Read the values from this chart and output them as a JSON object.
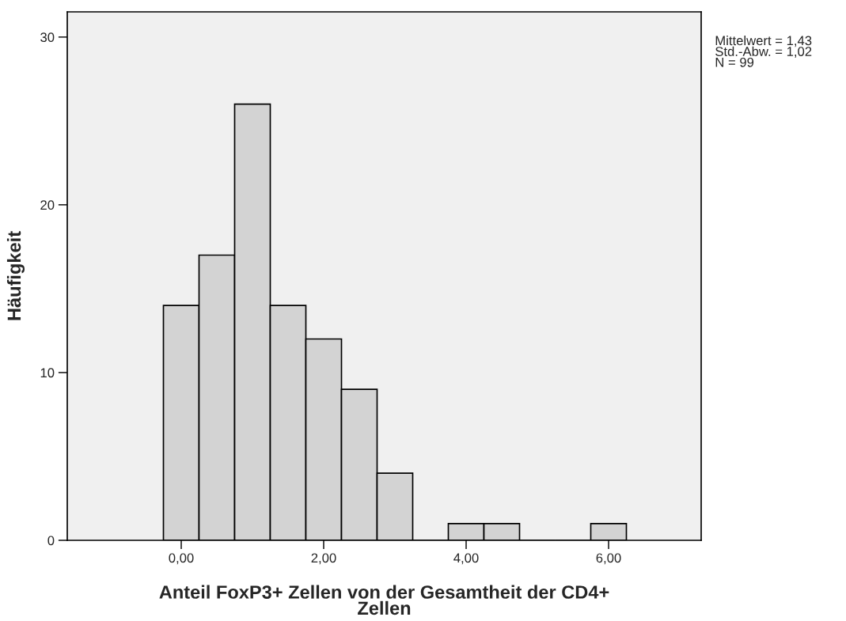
{
  "chart_data": {
    "type": "histogram",
    "bins": [
      -0.25,
      0.25,
      0.75,
      1.25,
      1.75,
      2.25,
      2.75,
      3.25,
      3.75,
      4.25,
      4.75,
      5.25,
      5.75,
      6.25
    ],
    "values": [
      14,
      17,
      26,
      14,
      12,
      9,
      4,
      0,
      1,
      1,
      0,
      0,
      1
    ],
    "color": "#d3d3d3",
    "xlabel": "Anteil FoxP3+ Zellen von der Gesamtheit der CD4+\nZellen",
    "ylabel": "Häufigkeit",
    "xlim": [
      -1.6,
      7.3
    ],
    "ylim": [
      0,
      31.5
    ],
    "xticks": [
      {
        "value": 0,
        "label": "0,00"
      },
      {
        "value": 2,
        "label": "2,00"
      },
      {
        "value": 4,
        "label": "4,00"
      },
      {
        "value": 6,
        "label": "6,00"
      }
    ],
    "yticks": [
      0,
      10,
      20,
      30
    ],
    "annotations": [
      "Mittelwert = 1,43",
      "Std.-Abw. = 1,02",
      "N = 99"
    ],
    "grid": false
  }
}
